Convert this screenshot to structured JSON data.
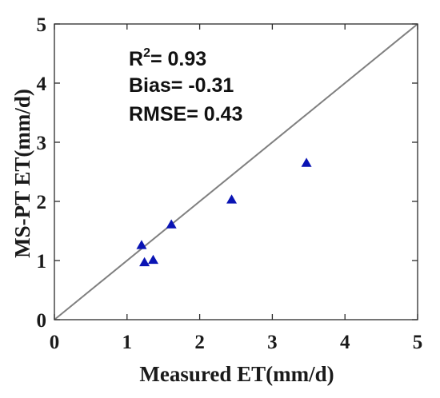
{
  "chart_data": {
    "type": "scatter",
    "xlabel": "Measured ET(mm/d)",
    "ylabel": "MS-PT ET(mm/d)",
    "xlim": [
      0,
      5
    ],
    "ylim": [
      0,
      5
    ],
    "xticks": [
      0,
      1,
      2,
      3,
      4,
      5
    ],
    "yticks": [
      0,
      1,
      2,
      3,
      4,
      5
    ],
    "marker": "triangle",
    "marker_color": "#0a14b4",
    "reference_line": {
      "type": "1:1",
      "from": [
        0,
        0
      ],
      "to": [
        5,
        5
      ],
      "color": "#808080"
    },
    "series": [
      {
        "points": [
          {
            "x": 1.2,
            "y": 1.26
          },
          {
            "x": 1.24,
            "y": 0.97
          },
          {
            "x": 1.36,
            "y": 1.01
          },
          {
            "x": 1.61,
            "y": 1.61
          },
          {
            "x": 2.44,
            "y": 2.03
          },
          {
            "x": 3.47,
            "y": 2.65
          }
        ]
      }
    ],
    "annotations": {
      "r2_prefix": "R",
      "r2_sup": "2",
      "r2_value": "= 0.93",
      "bias": "Bias= -0.31",
      "rmse": "RMSE= 0.43"
    },
    "grid": false,
    "box": true
  }
}
